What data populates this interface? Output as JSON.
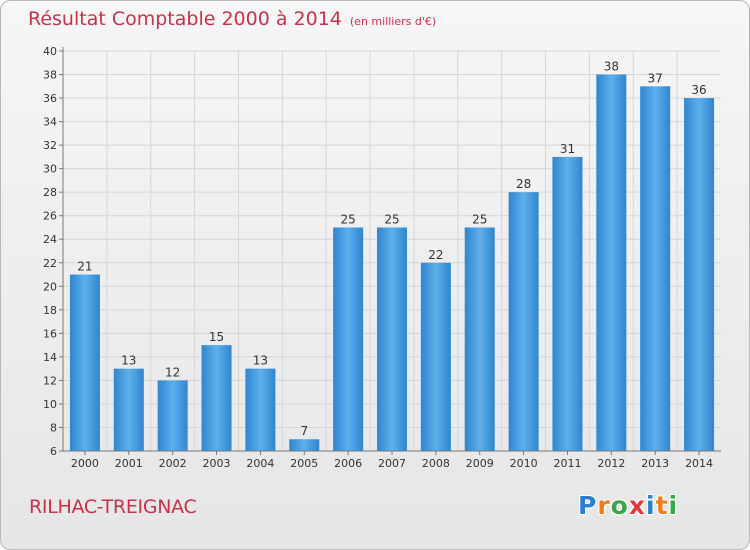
{
  "chart_data": {
    "type": "bar",
    "title": "Résultat Comptable 2000 à 2014",
    "subtitle": "(en milliers d'€)",
    "categories": [
      "2000",
      "2001",
      "2002",
      "2003",
      "2004",
      "2005",
      "2006",
      "2007",
      "2008",
      "2009",
      "2010",
      "2011",
      "2012",
      "2013",
      "2014"
    ],
    "values": [
      21,
      13,
      12,
      15,
      13,
      7,
      25,
      25,
      22,
      25,
      28,
      31,
      38,
      37,
      36
    ],
    "ylim": [
      6,
      40
    ],
    "yticks": [
      6,
      8,
      10,
      12,
      14,
      16,
      18,
      20,
      22,
      24,
      26,
      28,
      30,
      32,
      34,
      36,
      38,
      40
    ],
    "grid": true,
    "bar_color": "#4a9fe0"
  },
  "footer": {
    "place": "RILHAC-TREIGNAC",
    "logo_letters": [
      "P",
      "r",
      "o",
      "x",
      "i",
      "t",
      "i"
    ],
    "logo_colors": [
      "#2a7fd0",
      "#ef7d1a",
      "#3aa64a",
      "#e23a3a",
      "#2a7fd0",
      "#ef7d1a",
      "#3aa64a"
    ]
  }
}
